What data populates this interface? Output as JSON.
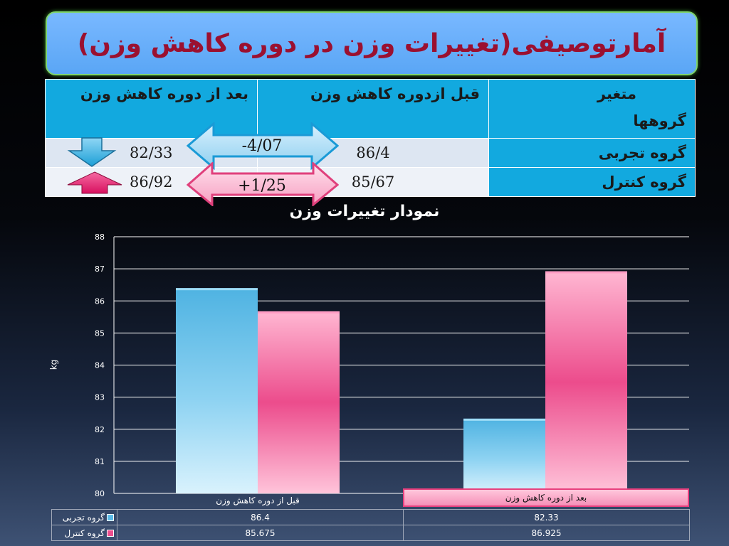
{
  "title": "آمارتوصیفی(تغییرات وزن در دوره کاهش وزن)",
  "table": {
    "corner_top": "متغیر",
    "corner_bottom": "گروهها",
    "col_before": "قبل ازدوره کاهش وزن",
    "col_after": "بعد از دوره کاهش وزن",
    "rows": [
      {
        "label": "گروه تجربی",
        "before": "86/4",
        "after": "82/33",
        "diff": "-4/07"
      },
      {
        "label": "گروه کنترل",
        "before": "85/67",
        "after": "86/92",
        "diff": "+1/25"
      }
    ]
  },
  "colors": {
    "experimental": "#5bbbe8",
    "control": "#ee4f8f",
    "header_blue": "#12a9df",
    "title_text": "#9b1030"
  },
  "chart_data": {
    "type": "bar",
    "title": "نمودار تغییرات وزن",
    "ylabel": "kg",
    "xlabel": "",
    "ylim": [
      80,
      88
    ],
    "yticks": [
      "80",
      "81",
      "82",
      "83",
      "84",
      "85",
      "86",
      "87",
      "88"
    ],
    "categories": [
      "قبل از دوره کاهش وزن",
      "بعد از دوره کاهش وزن"
    ],
    "series": [
      {
        "name": "گروه تجربی",
        "values": [
          86.4,
          82.33
        ],
        "labels": [
          "86.4",
          "82.33"
        ]
      },
      {
        "name": "گروه کنترل",
        "values": [
          85.675,
          86.925
        ],
        "labels": [
          "85.675",
          "86.925"
        ]
      }
    ],
    "grid": true,
    "legend": "data-table"
  }
}
